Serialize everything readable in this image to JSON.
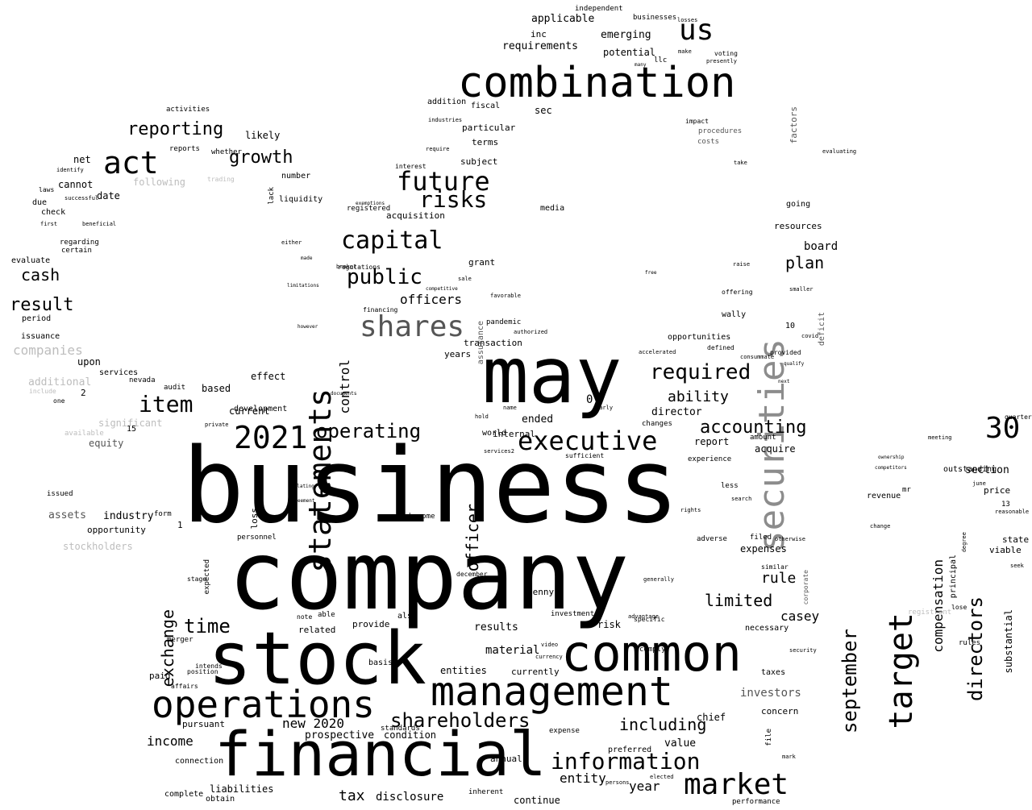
{
  "colors": {
    "background": "#ffffff",
    "primary": "#000000",
    "gray": "#8c8c8c",
    "darkgray": "#555555",
    "lightgray": "#bdbdbd"
  },
  "words": [
    "business",
    "company",
    "stock",
    "financial",
    "may",
    "common",
    "management",
    "operations",
    "combination",
    "market",
    "securities",
    "statements",
    "shares",
    "information",
    "shareholders",
    "target",
    "capital",
    "executive",
    "future",
    "item",
    "act",
    "us",
    "2021",
    "operating",
    "risks",
    "public",
    "required",
    "accounting",
    "directors",
    "time",
    "30",
    "september",
    "limited",
    "including",
    "reporting",
    "growth",
    "cash",
    "result",
    "officer",
    "exchange",
    "compensation",
    "tax",
    "disclosure",
    "entity",
    "year",
    "officers",
    "control",
    "ability",
    "plan",
    "rule",
    "casey",
    "income",
    "new 2020",
    "prospective",
    "condition",
    "value",
    "chief",
    "investors",
    "concern",
    "liabilities",
    "complete",
    "obtain",
    "connection",
    "pursuant",
    "paid",
    "material",
    "results",
    "entities",
    "currently",
    "related",
    "provide",
    "also",
    "risk",
    "investment",
    "board",
    "resources",
    "going",
    "section",
    "price",
    "outstanding",
    "state",
    "viable",
    "substantial",
    "principal",
    "registrant",
    "lose",
    "rules",
    "mr",
    "revenue",
    "companies",
    "additional",
    "assets",
    "industry",
    "opportunity",
    "stockholders",
    "equity",
    "significant",
    "based",
    "current",
    "development",
    "effect",
    "audit",
    "services",
    "nevada",
    "upon",
    "period",
    "issuance",
    "evaluate",
    "regarding",
    "certain",
    "date",
    "cannot",
    "due",
    "check",
    "net",
    "reports",
    "following",
    "likely",
    "number",
    "liquidity",
    "acquisition",
    "subject",
    "terms",
    "particular",
    "fiscal",
    "sec",
    "addition",
    "applicable",
    "inc",
    "requirements",
    "emerging",
    "potential",
    "transaction",
    "years",
    "grant",
    "director",
    "ended",
    "report",
    "acquire",
    "amount",
    "expenses",
    "filed",
    "necessary",
    "opportunities",
    "wally",
    "media",
    "defined",
    "provided",
    "10",
    "15",
    "2",
    "1",
    "0",
    "form",
    "issued",
    "stage",
    "merger",
    "intends",
    "position",
    "affairs",
    "basis",
    "standards",
    "internal",
    "world",
    "expected",
    "loss",
    "become",
    "able",
    "note",
    "december",
    "penny",
    "annual",
    "expense",
    "preferred",
    "continue",
    "inherent",
    "interest",
    "require",
    "pandemic",
    "assurance",
    "financing",
    "independent",
    "businesses",
    "activities",
    "laws",
    "first",
    "impact",
    "costs",
    "procedures",
    "factors",
    "deficit",
    "smaller",
    "offering",
    "raise",
    "free",
    "take",
    "evaluating",
    "covid",
    "similar",
    "advantage",
    "comply",
    "specific",
    "experience",
    "changes",
    "rights",
    "adverse",
    "search",
    "less",
    "otherwise",
    "generally",
    "13",
    "reasonable",
    "degree",
    "accelerated",
    "one",
    "include",
    "available",
    "whether",
    "trading",
    "identify",
    "beneficial",
    "successful",
    "private",
    "personnel",
    "documents",
    "relating",
    "agreement",
    "sufficient",
    "authorized",
    "favorable",
    "competitive",
    "taxes",
    "file",
    "mark",
    "corporate",
    "quarter",
    "meeting",
    "ownership",
    "competitors",
    "june",
    "seek",
    "change",
    "performance",
    "security",
    "voting",
    "presently",
    "losses",
    "many",
    "llc",
    "make",
    "industries",
    "sale",
    "regulations",
    "broker",
    "registered",
    "exemptions",
    "lack",
    "either",
    "made",
    "limitations",
    "however",
    "consummate",
    "qualify",
    "next",
    "elected",
    "persons",
    "video",
    "currency",
    "services2",
    "early",
    "hold",
    "name"
  ]
}
